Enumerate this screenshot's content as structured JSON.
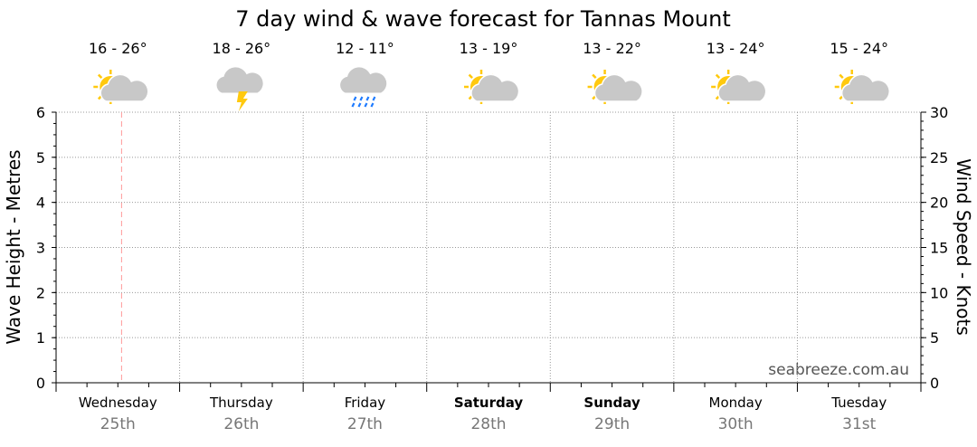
{
  "chart_data": {
    "type": "line",
    "title": "7 day wind & wave forecast for Tannas Mount",
    "ylabel_left": "Wave Height - Metres",
    "ylabel_right": "Wind Speed - Knots",
    "ylim_left": [
      0,
      6
    ],
    "ylim_right": [
      0,
      30
    ],
    "yticks_left": [
      "0",
      "1",
      "2",
      "3",
      "4",
      "5",
      "6"
    ],
    "yticks_right": [
      "0",
      "5",
      "10",
      "15",
      "20",
      "25",
      "30"
    ],
    "grid": true,
    "current_time_marker_day_fraction": 0.53,
    "days": [
      {
        "name": "Wednesday",
        "date": "25th",
        "temp": "16 - 26°",
        "icon": "partly-cloudy-icon",
        "bold": false
      },
      {
        "name": "Thursday",
        "date": "26th",
        "temp": "18 - 26°",
        "icon": "thunderstorm-icon",
        "bold": false
      },
      {
        "name": "Friday",
        "date": "27th",
        "temp": "12 - 11°",
        "icon": "rain-icon",
        "bold": false
      },
      {
        "name": "Saturday",
        "date": "28th",
        "temp": "13 - 19°",
        "icon": "partly-cloudy-icon",
        "bold": true
      },
      {
        "name": "Sunday",
        "date": "29th",
        "temp": "13 - 22°",
        "icon": "partly-cloudy-icon",
        "bold": true
      },
      {
        "name": "Monday",
        "date": "30th",
        "temp": "13 - 24°",
        "icon": "partly-cloudy-icon",
        "bold": false
      },
      {
        "name": "Tuesday",
        "date": "31st",
        "temp": "15 - 24°",
        "icon": "partly-cloudy-icon",
        "bold": false
      }
    ],
    "series": []
  },
  "watermark": "seabreeze.com.au",
  "colors": {
    "sun": "#ffc90e",
    "cloud": "#c8c8c8",
    "rain": "#1e7bff",
    "now_line": "#ff9999"
  }
}
